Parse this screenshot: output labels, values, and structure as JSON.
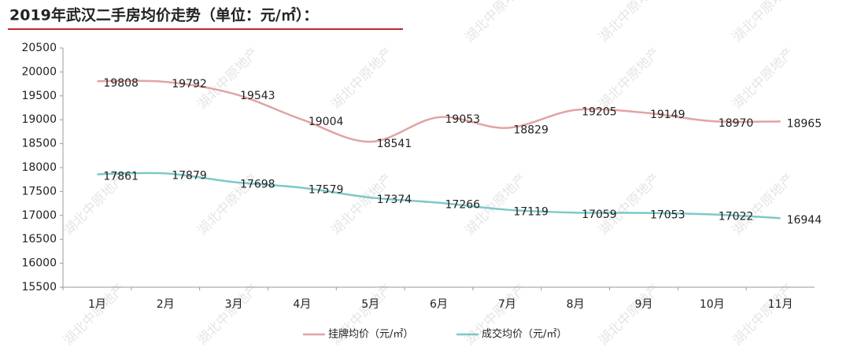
{
  "chart_data": {
    "type": "line",
    "title": "2019年武汉二手房均价走势（单位：元/㎡）：",
    "watermark": "湖北中原地产",
    "categories": [
      "1月",
      "2月",
      "3月",
      "4月",
      "5月",
      "6月",
      "7月",
      "8月",
      "9月",
      "10月",
      "11月"
    ],
    "series": [
      {
        "name": "挂牌均价（元/㎡）",
        "color": "#e3a3a3",
        "values": [
          19808,
          19792,
          19543,
          19004,
          18541,
          19053,
          18829,
          19205,
          19149,
          18970,
          18965
        ]
      },
      {
        "name": "成交均价（元/㎡）",
        "color": "#7ec8c8",
        "values": [
          17861,
          17879,
          17698,
          17579,
          17374,
          17266,
          17119,
          17059,
          17053,
          17022,
          16944
        ]
      }
    ],
    "ylim": [
      15500,
      20500
    ],
    "yticks": [
      15500,
      16000,
      16500,
      17000,
      17500,
      18000,
      18500,
      19000,
      19500,
      20000,
      20500
    ],
    "legend": "bottom"
  }
}
